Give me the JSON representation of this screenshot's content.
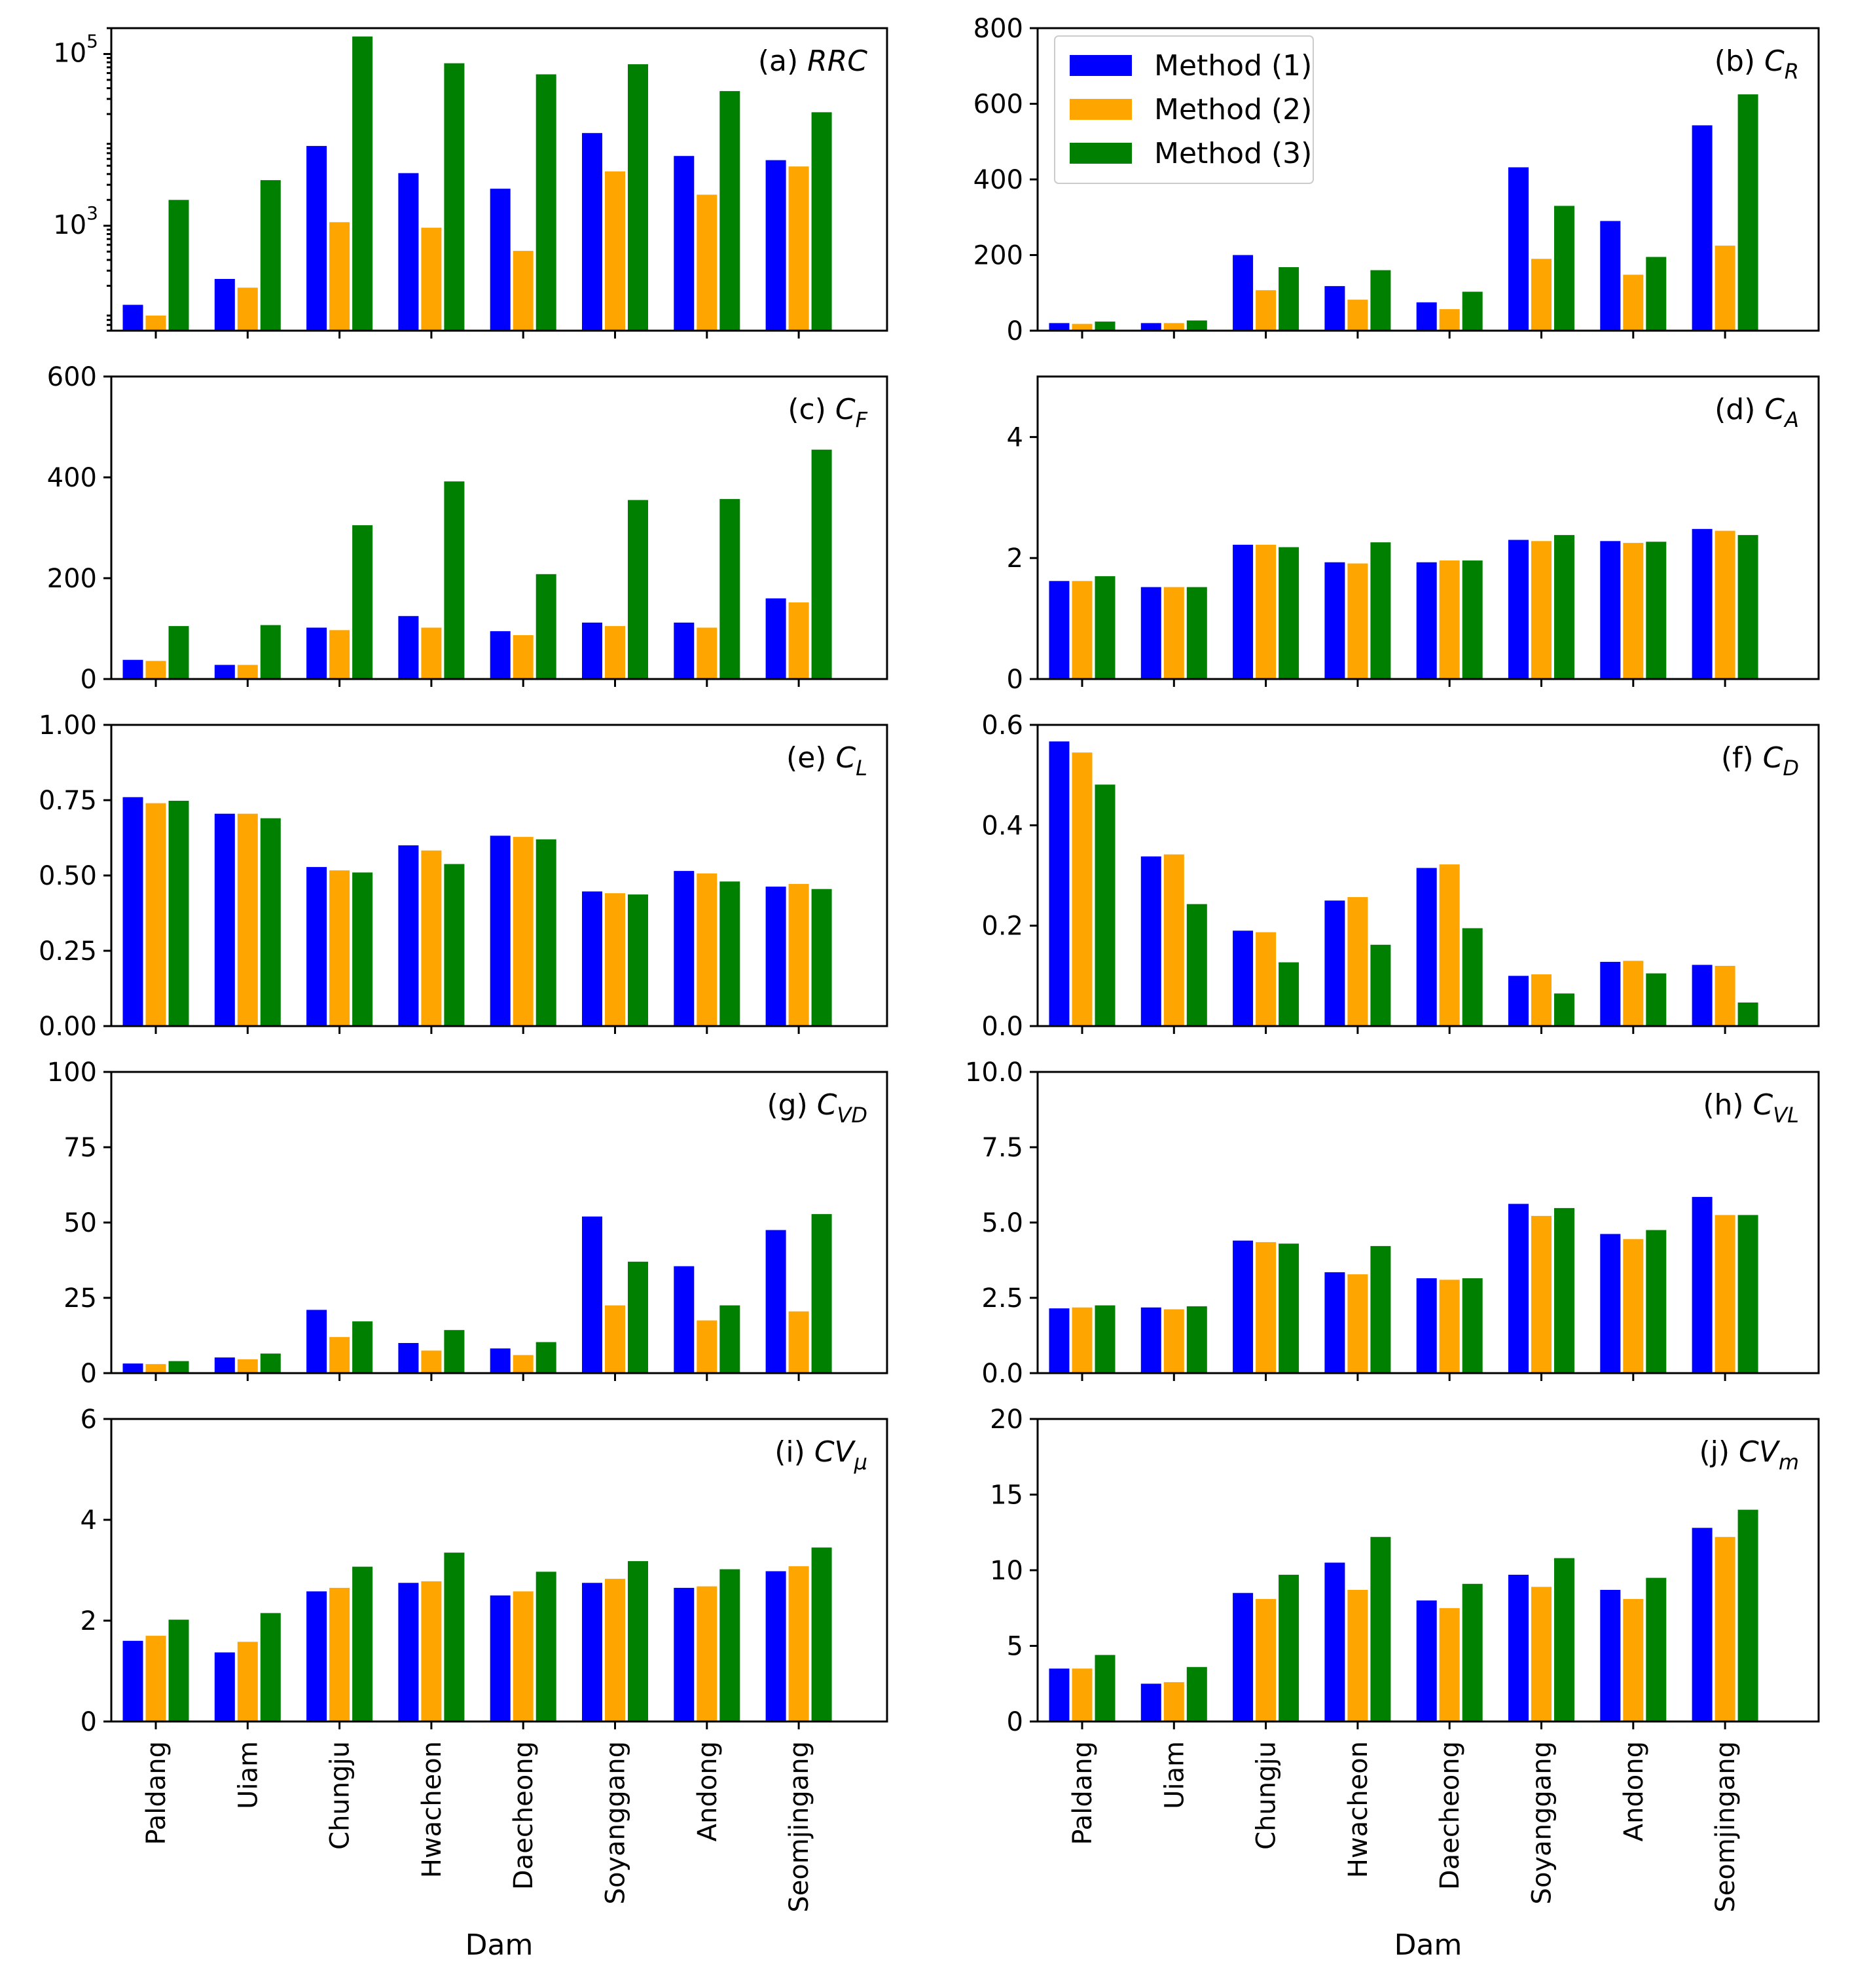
{
  "figure": {
    "xlabel": "Dam",
    "categories": [
      "Paldang",
      "Uiam",
      "Chungju",
      "Hwacheon",
      "Daecheong",
      "Soyanggang",
      "Andong",
      "Seomjingang"
    ],
    "legend": [
      {
        "label": "Method (1)",
        "color": "#0000ff"
      },
      {
        "label": "Method (2)",
        "color": "#ffa500"
      },
      {
        "label": "Method (3)",
        "color": "#008000"
      }
    ]
  },
  "chart_data": [
    {
      "id": "a",
      "type": "bar",
      "scale": "log",
      "panel_prefix": "(a) ",
      "metric": "RRC",
      "metric_sub": "",
      "ylim": [
        60,
        200000
      ],
      "yticks": [
        {
          "value": 1000,
          "base": "10",
          "exp": "3"
        },
        {
          "value": 100000,
          "base": "10",
          "exp": "5"
        }
      ],
      "series": [
        {
          "name": "Method (1)",
          "values": [
            120,
            240,
            8500,
            4100,
            2700,
            12000,
            6500,
            5800
          ]
        },
        {
          "name": "Method (2)",
          "values": [
            90,
            190,
            1100,
            950,
            510,
            4300,
            2300,
            4900
          ]
        },
        {
          "name": "Method (3)",
          "values": [
            2000,
            3400,
            160000,
            78000,
            58000,
            76000,
            37000,
            21000
          ]
        }
      ]
    },
    {
      "id": "b",
      "type": "bar",
      "scale": "linear",
      "panel_prefix": "(b) ",
      "metric": "C",
      "metric_sub": "R",
      "ylim": [
        0,
        800
      ],
      "ytick_labels": [
        "0",
        "200",
        "400",
        "600",
        "800"
      ],
      "series": [
        {
          "name": "Method (1)",
          "values": [
            20,
            20,
            200,
            118,
            75,
            432,
            290,
            543
          ]
        },
        {
          "name": "Method (2)",
          "values": [
            18,
            20,
            107,
            82,
            57,
            190,
            148,
            225
          ]
        },
        {
          "name": "Method (3)",
          "values": [
            24,
            27,
            168,
            160,
            103,
            330,
            195,
            625
          ]
        }
      ]
    },
    {
      "id": "c",
      "type": "bar",
      "scale": "linear",
      "panel_prefix": "(c) ",
      "metric": "C",
      "metric_sub": "F",
      "ylim": [
        0,
        600
      ],
      "ytick_labels": [
        "0",
        "200",
        "400",
        "600"
      ],
      "series": [
        {
          "name": "Method (1)",
          "values": [
            38,
            28,
            102,
            125,
            95,
            112,
            112,
            160
          ]
        },
        {
          "name": "Method (2)",
          "values": [
            36,
            28,
            97,
            102,
            87,
            105,
            102,
            152
          ]
        },
        {
          "name": "Method (3)",
          "values": [
            105,
            107,
            305,
            392,
            208,
            355,
            357,
            455
          ]
        }
      ]
    },
    {
      "id": "d",
      "type": "bar",
      "scale": "linear",
      "panel_prefix": "(d) ",
      "metric": "C",
      "metric_sub": "A",
      "ylim": [
        0,
        5
      ],
      "ytick_labels": [
        "0",
        "2",
        "4"
      ],
      "series": [
        {
          "name": "Method (1)",
          "values": [
            1.62,
            1.52,
            2.22,
            1.93,
            1.93,
            2.3,
            2.28,
            2.48
          ]
        },
        {
          "name": "Method (2)",
          "values": [
            1.62,
            1.52,
            2.22,
            1.91,
            1.96,
            2.28,
            2.25,
            2.45
          ]
        },
        {
          "name": "Method (3)",
          "values": [
            1.7,
            1.52,
            2.18,
            2.26,
            1.96,
            2.38,
            2.27,
            2.38
          ]
        }
      ]
    },
    {
      "id": "e",
      "type": "bar",
      "scale": "linear",
      "panel_prefix": "(e) ",
      "metric": "C",
      "metric_sub": "L",
      "ylim": [
        0,
        1
      ],
      "ytick_labels": [
        "0.00",
        "0.25",
        "0.50",
        "0.75",
        "1.00"
      ],
      "series": [
        {
          "name": "Method (1)",
          "values": [
            0.76,
            0.705,
            0.528,
            0.6,
            0.632,
            0.447,
            0.515,
            0.463
          ]
        },
        {
          "name": "Method (2)",
          "values": [
            0.74,
            0.705,
            0.517,
            0.583,
            0.628,
            0.441,
            0.507,
            0.472
          ]
        },
        {
          "name": "Method (3)",
          "values": [
            0.748,
            0.69,
            0.51,
            0.538,
            0.62,
            0.437,
            0.48,
            0.455
          ]
        }
      ]
    },
    {
      "id": "f",
      "type": "bar",
      "scale": "linear",
      "panel_prefix": "(f) ",
      "metric": "C",
      "metric_sub": "D",
      "ylim": [
        0,
        0.6
      ],
      "ytick_labels": [
        "0.0",
        "0.2",
        "0.4",
        "0.6"
      ],
      "series": [
        {
          "name": "Method (1)",
          "values": [
            0.567,
            0.338,
            0.19,
            0.25,
            0.315,
            0.1,
            0.128,
            0.122
          ]
        },
        {
          "name": "Method (2)",
          "values": [
            0.545,
            0.342,
            0.187,
            0.257,
            0.322,
            0.103,
            0.13,
            0.12
          ]
        },
        {
          "name": "Method (3)",
          "values": [
            0.481,
            0.243,
            0.127,
            0.162,
            0.195,
            0.065,
            0.105,
            0.047
          ]
        }
      ]
    },
    {
      "id": "g",
      "type": "bar",
      "scale": "linear",
      "panel_prefix": "(g) ",
      "metric": "C",
      "metric_sub": "VD",
      "ylim": [
        0,
        100
      ],
      "ytick_labels": [
        "0",
        "25",
        "50",
        "75",
        "100"
      ],
      "series": [
        {
          "name": "Method (1)",
          "values": [
            3.2,
            5.2,
            21.0,
            10.0,
            8.2,
            52.0,
            35.5,
            47.5
          ]
        },
        {
          "name": "Method (2)",
          "values": [
            3.0,
            4.6,
            12.0,
            7.5,
            6.0,
            22.5,
            17.5,
            20.5
          ]
        },
        {
          "name": "Method (3)",
          "values": [
            4.0,
            6.5,
            17.2,
            14.3,
            10.3,
            37.0,
            22.5,
            52.8
          ]
        }
      ]
    },
    {
      "id": "h",
      "type": "bar",
      "scale": "linear",
      "panel_prefix": "(h) ",
      "metric": "C",
      "metric_sub": "VL",
      "ylim": [
        0,
        10
      ],
      "ytick_labels": [
        "0.0",
        "2.5",
        "5.0",
        "7.5",
        "10.0"
      ],
      "series": [
        {
          "name": "Method (1)",
          "values": [
            2.15,
            2.18,
            4.4,
            3.35,
            3.15,
            5.62,
            4.62,
            5.85
          ]
        },
        {
          "name": "Method (2)",
          "values": [
            2.18,
            2.12,
            4.35,
            3.28,
            3.1,
            5.22,
            4.45,
            5.25
          ]
        },
        {
          "name": "Method (3)",
          "values": [
            2.25,
            2.22,
            4.3,
            4.22,
            3.15,
            5.48,
            4.75,
            5.25
          ]
        }
      ]
    },
    {
      "id": "i",
      "type": "bar",
      "scale": "linear",
      "panel_prefix": "(i) ",
      "metric": "CV",
      "metric_sub": "μ",
      "ylim": [
        0,
        6
      ],
      "ytick_labels": [
        "0",
        "2",
        "4",
        "6"
      ],
      "series": [
        {
          "name": "Method (1)",
          "values": [
            1.6,
            1.37,
            2.58,
            2.75,
            2.5,
            2.75,
            2.65,
            2.98
          ]
        },
        {
          "name": "Method (2)",
          "values": [
            1.7,
            1.58,
            2.65,
            2.78,
            2.58,
            2.83,
            2.68,
            3.08
          ]
        },
        {
          "name": "Method (3)",
          "values": [
            2.02,
            2.15,
            3.07,
            3.35,
            2.97,
            3.18,
            3.02,
            3.45
          ]
        }
      ]
    },
    {
      "id": "j",
      "type": "bar",
      "scale": "linear",
      "panel_prefix": "(j) ",
      "metric": "CV",
      "metric_sub": "m",
      "ylim": [
        0,
        20
      ],
      "ytick_labels": [
        "0",
        "5",
        "10",
        "15",
        "20"
      ],
      "series": [
        {
          "name": "Method (1)",
          "values": [
            3.5,
            2.5,
            8.5,
            10.5,
            8.0,
            9.7,
            8.7,
            12.8
          ]
        },
        {
          "name": "Method (2)",
          "values": [
            3.5,
            2.6,
            8.1,
            8.7,
            7.5,
            8.9,
            8.1,
            12.2
          ]
        },
        {
          "name": "Method (3)",
          "values": [
            4.4,
            3.6,
            9.7,
            12.2,
            9.1,
            10.8,
            9.5,
            14.0
          ]
        }
      ]
    }
  ]
}
